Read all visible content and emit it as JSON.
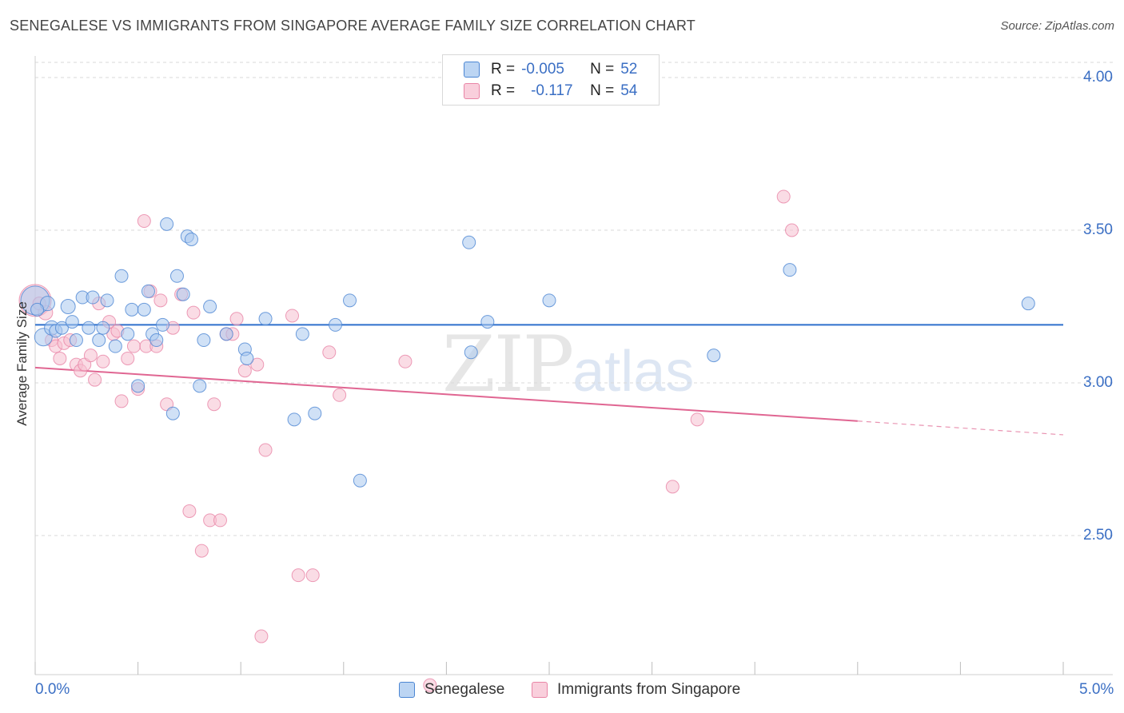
{
  "title": "SENEGALESE VS IMMIGRANTS FROM SINGAPORE AVERAGE FAMILY SIZE CORRELATION CHART",
  "source": "Source: ZipAtlas.com",
  "watermark": {
    "zip": "ZIP",
    "atlas": "atlas"
  },
  "legend": {
    "rows": [
      {
        "r_label": "R =",
        "r_value": "-0.005",
        "n_label": "N =",
        "n_value": "52"
      },
      {
        "r_label": "R =",
        "r_value": "-0.117",
        "n_label": "N =",
        "n_value": "54"
      }
    ]
  },
  "colors": {
    "blue_fill": "#a9c8ef",
    "blue_stroke": "#4c86d3",
    "blue_line": "#2e6fcc",
    "pink_fill": "#f6bfd0",
    "pink_stroke": "#e985a6",
    "pink_line": "#e06692",
    "grid": "#d9d9d9",
    "tick_text": "#3b6fc4"
  },
  "chart_data": {
    "type": "scatter",
    "title": "SENEGALESE VS IMMIGRANTS FROM SINGAPORE AVERAGE FAMILY SIZE CORRELATION CHART",
    "xlabel": "",
    "ylabel": "Average Family Size",
    "xlim": [
      0.0,
      5.0
    ],
    "ylim": [
      2.0,
      4.05
    ],
    "x_tick_labels": [
      "0.0%",
      "5.0%"
    ],
    "y_ticks": [
      2.5,
      3.0,
      3.5,
      4.0
    ],
    "y_tick_labels": [
      "2.50",
      "3.00",
      "3.50",
      "4.00"
    ],
    "grid": true,
    "legend_position": "top-center",
    "series": [
      {
        "name": "Senegalese",
        "r": -0.005,
        "n": 52,
        "trend": {
          "x": [
            0.0,
            5.0
          ],
          "y": [
            3.19,
            3.19
          ]
        },
        "points": [
          [
            0.0,
            3.27,
            18
          ],
          [
            0.04,
            3.15,
            11
          ],
          [
            0.06,
            3.26,
            9
          ],
          [
            0.08,
            3.18,
            9
          ],
          [
            0.1,
            3.17,
            8
          ],
          [
            0.13,
            3.18,
            8
          ],
          [
            0.16,
            3.25,
            9
          ],
          [
            0.18,
            3.2,
            8
          ],
          [
            0.2,
            3.14,
            8
          ],
          [
            0.23,
            3.28,
            8
          ],
          [
            0.26,
            3.18,
            8
          ],
          [
            0.28,
            3.28,
            8
          ],
          [
            0.31,
            3.14,
            8
          ],
          [
            0.33,
            3.18,
            8
          ],
          [
            0.35,
            3.27,
            8
          ],
          [
            0.39,
            3.12,
            8
          ],
          [
            0.42,
            3.35,
            8
          ],
          [
            0.45,
            3.16,
            8
          ],
          [
            0.47,
            3.24,
            8
          ],
          [
            0.5,
            2.99,
            8
          ],
          [
            0.53,
            3.24,
            8
          ],
          [
            0.55,
            3.3,
            8
          ],
          [
            0.57,
            3.16,
            8
          ],
          [
            0.59,
            3.14,
            8
          ],
          [
            0.62,
            3.19,
            8
          ],
          [
            0.64,
            3.52,
            8
          ],
          [
            0.67,
            2.9,
            8
          ],
          [
            0.69,
            3.35,
            8
          ],
          [
            0.72,
            3.29,
            8
          ],
          [
            0.74,
            3.48,
            8
          ],
          [
            0.76,
            3.47,
            8
          ],
          [
            0.8,
            2.99,
            8
          ],
          [
            0.82,
            3.14,
            8
          ],
          [
            0.85,
            3.25,
            8
          ],
          [
            0.93,
            3.16,
            8
          ],
          [
            1.02,
            3.11,
            8
          ],
          [
            1.03,
            3.08,
            8
          ],
          [
            1.12,
            3.21,
            8
          ],
          [
            1.26,
            2.88,
            8
          ],
          [
            1.3,
            3.16,
            8
          ],
          [
            1.36,
            2.9,
            8
          ],
          [
            1.46,
            3.19,
            8
          ],
          [
            1.53,
            3.27,
            8
          ],
          [
            1.58,
            2.68,
            8
          ],
          [
            2.11,
            3.46,
            8
          ],
          [
            2.12,
            3.1,
            8
          ],
          [
            2.2,
            3.2,
            8
          ],
          [
            2.5,
            3.27,
            8
          ],
          [
            3.3,
            3.09,
            8
          ],
          [
            3.67,
            3.37,
            8
          ],
          [
            4.83,
            3.26,
            8
          ],
          [
            0.01,
            3.24,
            8
          ]
        ]
      },
      {
        "name": "Immigrants from Singapore",
        "r": -0.117,
        "n": 54,
        "trend": {
          "x": [
            0.0,
            4.0
          ],
          "y": [
            3.05,
            2.875
          ]
        },
        "trend_dashed": {
          "x": [
            4.0,
            5.0
          ],
          "y": [
            2.875,
            2.83
          ]
        },
        "points": [
          [
            0.0,
            3.27,
            20
          ],
          [
            0.05,
            3.23,
            9
          ],
          [
            0.08,
            3.14,
            8
          ],
          [
            0.1,
            3.12,
            8
          ],
          [
            0.12,
            3.08,
            8
          ],
          [
            0.14,
            3.13,
            8
          ],
          [
            0.17,
            3.14,
            8
          ],
          [
            0.2,
            3.06,
            8
          ],
          [
            0.22,
            3.04,
            8
          ],
          [
            0.24,
            3.06,
            8
          ],
          [
            0.27,
            3.09,
            8
          ],
          [
            0.29,
            3.01,
            8
          ],
          [
            0.31,
            3.26,
            8
          ],
          [
            0.33,
            3.07,
            8
          ],
          [
            0.36,
            3.2,
            8
          ],
          [
            0.38,
            3.16,
            8
          ],
          [
            0.4,
            3.17,
            8
          ],
          [
            0.42,
            2.94,
            8
          ],
          [
            0.45,
            3.08,
            8
          ],
          [
            0.48,
            3.12,
            8
          ],
          [
            0.5,
            2.98,
            8
          ],
          [
            0.53,
            3.53,
            8
          ],
          [
            0.54,
            3.12,
            8
          ],
          [
            0.56,
            3.3,
            8
          ],
          [
            0.59,
            3.12,
            8
          ],
          [
            0.61,
            3.27,
            8
          ],
          [
            0.64,
            2.93,
            8
          ],
          [
            0.67,
            3.18,
            8
          ],
          [
            0.71,
            3.29,
            8
          ],
          [
            0.75,
            2.58,
            8
          ],
          [
            0.77,
            3.23,
            8
          ],
          [
            0.81,
            2.45,
            8
          ],
          [
            0.85,
            2.55,
            8
          ],
          [
            0.87,
            2.93,
            8
          ],
          [
            0.9,
            2.55,
            8
          ],
          [
            0.93,
            3.16,
            8
          ],
          [
            0.96,
            3.16,
            8
          ],
          [
            0.98,
            3.21,
            8
          ],
          [
            1.02,
            3.04,
            8
          ],
          [
            1.08,
            3.06,
            8
          ],
          [
            1.1,
            2.17,
            8
          ],
          [
            1.12,
            2.78,
            8
          ],
          [
            1.25,
            3.22,
            8
          ],
          [
            1.28,
            2.37,
            8
          ],
          [
            1.35,
            2.37,
            8
          ],
          [
            1.43,
            3.1,
            8
          ],
          [
            1.48,
            2.96,
            8
          ],
          [
            1.8,
            3.07,
            8
          ],
          [
            1.92,
            2.01,
            8
          ],
          [
            3.1,
            2.66,
            8
          ],
          [
            3.22,
            2.88,
            8
          ],
          [
            3.64,
            3.61,
            8
          ],
          [
            3.68,
            3.5,
            8
          ],
          [
            0.02,
            3.26,
            8
          ]
        ]
      }
    ]
  }
}
